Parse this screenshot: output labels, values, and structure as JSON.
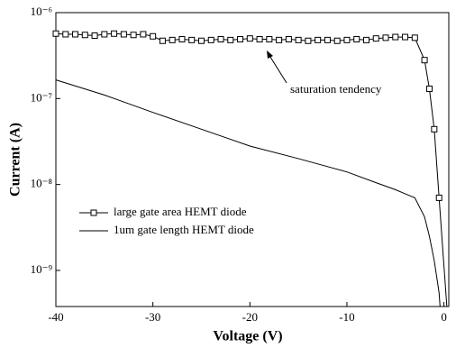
{
  "chart_data": {
    "type": "line",
    "x_label": "Voltage (V)",
    "y_label": "Current (A)",
    "annotation": "saturation tendency",
    "log_y": true,
    "xlim": [
      -40,
      0.5
    ],
    "xticks": [
      -40,
      -30,
      -20,
      -10,
      0
    ],
    "ylim": [
      3.8e-10,
      1e-06
    ],
    "yticks": [
      {
        "value": 1e-09,
        "label": "10⁻⁹"
      },
      {
        "value": 1e-08,
        "label": "10⁻⁸"
      },
      {
        "value": 1e-07,
        "label": "10⁻⁷"
      },
      {
        "value": 1e-06,
        "label": "10⁻⁶"
      }
    ],
    "legend": "left",
    "series": [
      {
        "name": "large gate area HEMT diode",
        "color": "#000",
        "marker": "square",
        "x": [
          -40,
          -39,
          -38,
          -37,
          -36,
          -35,
          -34,
          -33,
          -32,
          -31,
          -30,
          -29,
          -28,
          -27,
          -26,
          -25,
          -24,
          -23,
          -22,
          -21,
          -20,
          -19,
          -18,
          -17,
          -16,
          -15,
          -14,
          -13,
          -12,
          -11,
          -10,
          -9,
          -8,
          -7,
          -6,
          -5,
          -4,
          -3,
          -2,
          -1.5,
          -1,
          -0.5,
          0.3
        ],
        "values": [
          5.7e-07,
          5.6e-07,
          5.6e-07,
          5.5e-07,
          5.4e-07,
          5.6e-07,
          5.7e-07,
          5.6e-07,
          5.5e-07,
          5.6e-07,
          5.3e-07,
          4.7e-07,
          4.8e-07,
          4.9e-07,
          4.8e-07,
          4.7e-07,
          4.8e-07,
          4.9e-07,
          4.8e-07,
          4.9e-07,
          5e-07,
          4.9e-07,
          4.9e-07,
          4.8e-07,
          4.9e-07,
          4.8e-07,
          4.7e-07,
          4.8e-07,
          4.8e-07,
          4.7e-07,
          4.8e-07,
          4.9e-07,
          4.8e-07,
          5e-07,
          5.1e-07,
          5.2e-07,
          5.2e-07,
          5.1e-07,
          2.8e-07,
          1.3e-07,
          4.4e-08,
          7e-09,
          3.8e-10
        ],
        "markers": [
          true,
          true,
          true,
          true,
          true,
          true,
          true,
          true,
          true,
          true,
          true,
          true,
          true,
          true,
          true,
          true,
          true,
          true,
          true,
          true,
          true,
          true,
          true,
          true,
          true,
          true,
          true,
          true,
          true,
          true,
          true,
          true,
          true,
          true,
          true,
          true,
          true,
          true,
          true,
          true,
          true,
          true,
          false
        ]
      },
      {
        "name": "1um gate length HEMT diode",
        "color": "#000",
        "x": [
          -40,
          -35,
          -30,
          -25,
          -20,
          -15,
          -10,
          -7,
          -5,
          -4,
          -3,
          -2,
          -1.5,
          -1,
          -0.5,
          -0.4
        ],
        "values": [
          1.65e-07,
          1.1e-07,
          6.9e-08,
          4.4e-08,
          2.8e-08,
          2e-08,
          1.4e-08,
          1.05e-08,
          8.7e-09,
          7.8e-09,
          7e-09,
          4.2e-09,
          2.5e-09,
          1.3e-09,
          5.5e-10,
          3.8e-10
        ]
      }
    ]
  }
}
